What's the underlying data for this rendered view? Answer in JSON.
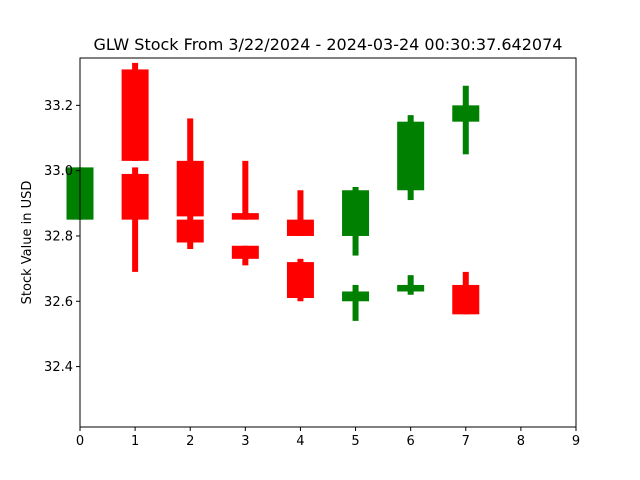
{
  "chart_data": {
    "type": "candlestick",
    "title": "GLW Stock From 3/22/2024 - 2024-03-24 00:30:37.642074",
    "xlabel": "",
    "ylabel": "Stock Value in USD",
    "xlim": [
      0,
      9
    ],
    "ylim": [
      32.215,
      33.345
    ],
    "x_ticks": [
      "0",
      "1",
      "2",
      "3",
      "4",
      "5",
      "6",
      "7",
      "8",
      "9"
    ],
    "y_ticks": [
      "32.4",
      "32.6",
      "32.8",
      "33.0",
      "33.2"
    ],
    "grid": false,
    "colors": {
      "up": "#008000",
      "down": "#ff0000"
    },
    "candles": [
      {
        "x": 0,
        "open": 32.85,
        "close": 33.01,
        "high": 33.01,
        "low": 32.85,
        "direction": "up"
      },
      {
        "x": 1,
        "open": 33.31,
        "close": 33.03,
        "high": 33.33,
        "low": 33.03,
        "direction": "down"
      },
      {
        "x": 1,
        "open": 32.99,
        "close": 32.85,
        "high": 33.01,
        "low": 32.69,
        "direction": "down"
      },
      {
        "x": 2,
        "open": 33.03,
        "close": 32.86,
        "high": 33.16,
        "low": 32.86,
        "direction": "down"
      },
      {
        "x": 2,
        "open": 32.85,
        "close": 32.78,
        "high": 32.86,
        "low": 32.76,
        "direction": "down"
      },
      {
        "x": 3,
        "open": 32.87,
        "close": 32.85,
        "high": 33.03,
        "low": 32.85,
        "direction": "down"
      },
      {
        "x": 3,
        "open": 32.77,
        "close": 32.73,
        "high": 32.77,
        "low": 32.71,
        "direction": "down"
      },
      {
        "x": 4,
        "open": 32.85,
        "close": 32.8,
        "high": 32.94,
        "low": 32.8,
        "direction": "down"
      },
      {
        "x": 4,
        "open": 32.72,
        "close": 32.61,
        "high": 32.73,
        "low": 32.6,
        "direction": "down"
      },
      {
        "x": 5,
        "open": 32.8,
        "close": 32.94,
        "high": 32.95,
        "low": 32.74,
        "direction": "up"
      },
      {
        "x": 5,
        "open": 32.6,
        "close": 32.63,
        "high": 32.65,
        "low": 32.54,
        "direction": "up"
      },
      {
        "x": 6,
        "open": 32.94,
        "close": 33.15,
        "high": 33.17,
        "low": 32.91,
        "direction": "up"
      },
      {
        "x": 6,
        "open": 32.63,
        "close": 32.65,
        "high": 32.68,
        "low": 32.62,
        "direction": "up"
      },
      {
        "x": 7,
        "open": 33.15,
        "close": 33.2,
        "high": 33.26,
        "low": 33.05,
        "direction": "up"
      },
      {
        "x": 7,
        "open": 32.65,
        "close": 32.56,
        "high": 32.69,
        "low": 32.56,
        "direction": "down"
      }
    ]
  }
}
